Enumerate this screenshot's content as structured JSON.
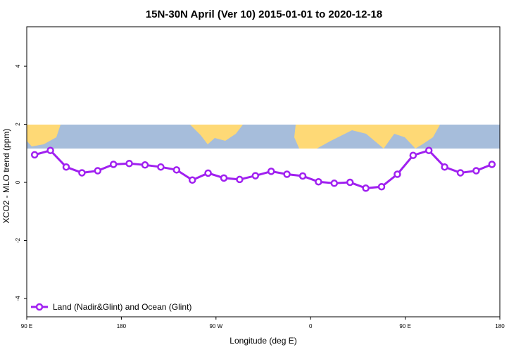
{
  "chart_data": {
    "type": "line",
    "title": "15N-30N April (Ver 10)   2015-01-01 to 2020-12-18",
    "xlabel": "Longitude (deg E)",
    "ylabel": "XCO2 - MLO trend (ppm)",
    "x": [
      97.5,
      112.5,
      127.5,
      142.5,
      157.5,
      172.5,
      187.5,
      202.5,
      217.5,
      232.5,
      247.5,
      262.5,
      277.5,
      292.5,
      307.5,
      322.5,
      337.5,
      352.5,
      367.5,
      382.5,
      397.5,
      412.5,
      427.5,
      442.5,
      457.5,
      472.5,
      487.5,
      502.5,
      517.5,
      532.5
    ],
    "series": [
      {
        "name": "Land (Nadir&Glint) and Ocean (Glint)",
        "color": "#a020f0",
        "values": [
          0.95,
          1.1,
          0.53,
          0.33,
          0.4,
          0.62,
          0.65,
          0.6,
          0.53,
          0.43,
          0.08,
          0.32,
          0.15,
          0.1,
          0.23,
          0.38,
          0.28,
          0.22,
          0.02,
          -0.03,
          0,
          -0.2,
          -0.15,
          0.28,
          0.93,
          1.1,
          0.53,
          0.33,
          0.4,
          0.62
        ]
      }
    ],
    "xlim": [
      90,
      540
    ],
    "xticks": [
      {
        "value": 90,
        "label": "90 E"
      },
      180,
      {
        "value": 270,
        "label": "90 W"
      },
      {
        "value": 360,
        "label": "0"
      },
      {
        "value": 450,
        "label": "90 E"
      },
      {
        "value": 540,
        "label": "180"
      }
    ],
    "ylim": [
      -4.63,
      5.36
    ],
    "yticks": [
      -4,
      -2,
      0,
      2,
      4
    ],
    "legend": "bottom-left"
  }
}
